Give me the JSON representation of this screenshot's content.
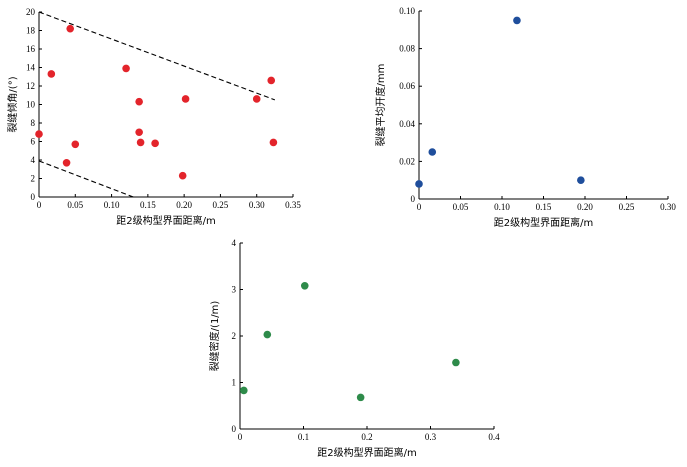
{
  "chart_data": [
    {
      "type": "scatter",
      "xlabel": "距2级构型界面距离/m",
      "ylabel": "裂缝倾角/(°)",
      "xlim": [
        0,
        0.35
      ],
      "ylim": [
        0,
        20
      ],
      "xticks": [
        "0",
        "0.05",
        "0.10",
        "0.15",
        "0.20",
        "0.25",
        "0.30",
        "0.35"
      ],
      "yticks": [
        "0",
        "2",
        "4",
        "6",
        "8",
        "10",
        "12",
        "14",
        "16",
        "18",
        "20"
      ],
      "marker_color": "#e3242b",
      "points": [
        {
          "x": 0.0,
          "y": 6.8
        },
        {
          "x": 0.017,
          "y": 13.3
        },
        {
          "x": 0.038,
          "y": 3.7
        },
        {
          "x": 0.043,
          "y": 18.2
        },
        {
          "x": 0.05,
          "y": 5.7
        },
        {
          "x": 0.12,
          "y": 13.9
        },
        {
          "x": 0.138,
          "y": 10.3
        },
        {
          "x": 0.138,
          "y": 7.0
        },
        {
          "x": 0.14,
          "y": 5.9
        },
        {
          "x": 0.16,
          "y": 5.8
        },
        {
          "x": 0.198,
          "y": 2.3
        },
        {
          "x": 0.202,
          "y": 10.6
        },
        {
          "x": 0.3,
          "y": 10.6
        },
        {
          "x": 0.32,
          "y": 12.6
        },
        {
          "x": 0.323,
          "y": 5.9
        }
      ],
      "envelope_lines": [
        {
          "x": [
            0.0,
            0.325
          ],
          "y": [
            20.0,
            10.5
          ]
        },
        {
          "x": [
            0.0,
            0.13
          ],
          "y": [
            3.9,
            0.0
          ]
        }
      ]
    },
    {
      "type": "scatter",
      "xlabel": "距2级构型界面距离/m",
      "ylabel": "裂缝平均开度/mm",
      "xlim": [
        0,
        0.3
      ],
      "ylim": [
        0,
        0.1
      ],
      "xticks": [
        "0",
        "0.05",
        "0.10",
        "0.15",
        "0.20",
        "0.25",
        "0.30"
      ],
      "yticks": [
        "0",
        "0.02",
        "0.04",
        "0.06",
        "0.08",
        "0.10"
      ],
      "marker_color": "#1f4e9c",
      "points": [
        {
          "x": 0.0,
          "y": 0.008
        },
        {
          "x": 0.016,
          "y": 0.025
        },
        {
          "x": 0.118,
          "y": 0.095
        },
        {
          "x": 0.195,
          "y": 0.01
        }
      ]
    },
    {
      "type": "scatter",
      "xlabel": "距2级构型界面距离/m",
      "ylabel": "裂缝密度/(1/m)",
      "xlim": [
        0,
        0.4
      ],
      "ylim": [
        0,
        4
      ],
      "xticks": [
        "0",
        "0.1",
        "0.2",
        "0.3",
        "0.4"
      ],
      "yticks": [
        "0",
        "1",
        "2",
        "3",
        "4"
      ],
      "marker_color": "#2e8b4a",
      "points": [
        {
          "x": 0.006,
          "y": 0.83
        },
        {
          "x": 0.043,
          "y": 2.03
        },
        {
          "x": 0.102,
          "y": 3.08
        },
        {
          "x": 0.19,
          "y": 0.68
        },
        {
          "x": 0.34,
          "y": 1.43
        }
      ]
    }
  ]
}
